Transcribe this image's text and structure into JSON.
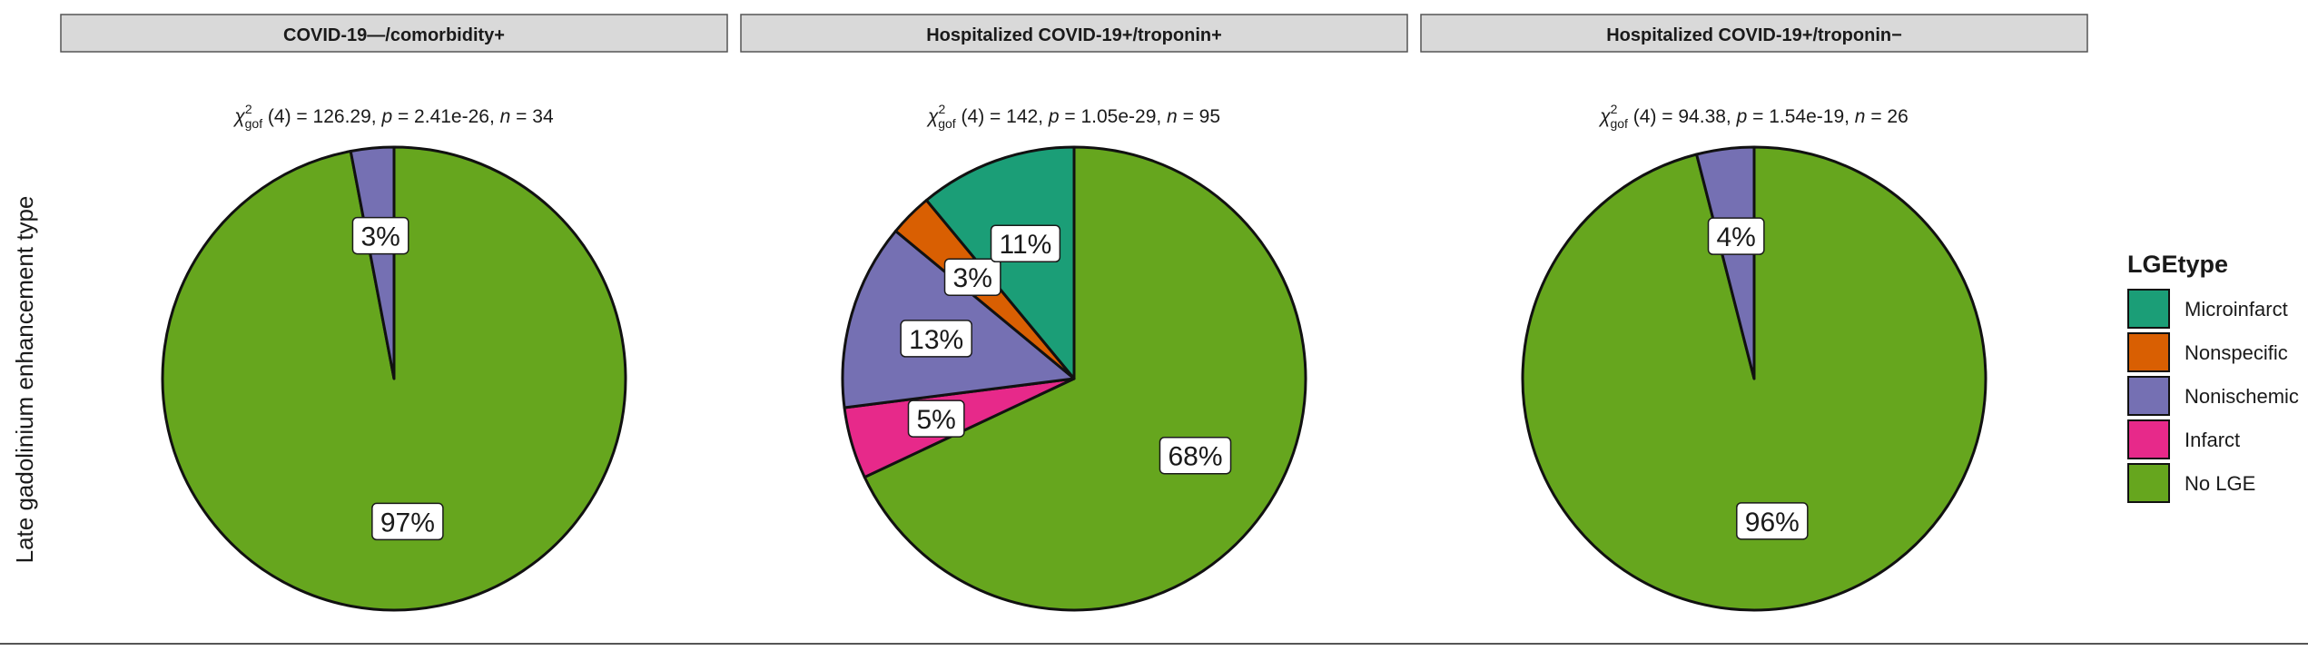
{
  "y_axis_label": "Late gadolinium enhancement type",
  "legend": {
    "title": "LGEtype",
    "items": [
      {
        "label": "Microinfarct",
        "color": "#1b9e77"
      },
      {
        "label": "Nonspecific",
        "color": "#d95f02"
      },
      {
        "label": "Nonischemic",
        "color": "#7570b3"
      },
      {
        "label": "Infarct",
        "color": "#e7298a"
      },
      {
        "label": "No LGE",
        "color": "#66a61e"
      }
    ]
  },
  "chart_data": [
    {
      "type": "pie",
      "title": "COVID-19—/comorbidity+",
      "stat": {
        "chi2": "126.29",
        "p": "2.41e-26",
        "n": "34"
      },
      "slices": [
        {
          "name": "No LGE",
          "value": 97,
          "label": "97%",
          "color": "#66a61e"
        },
        {
          "name": "Nonischemic",
          "value": 3,
          "label": "3%",
          "color": "#7570b3"
        }
      ]
    },
    {
      "type": "pie",
      "title": "Hospitalized COVID-19+/troponin+",
      "stat": {
        "chi2": "142",
        "p": "1.05e-29",
        "n": "95"
      },
      "slices": [
        {
          "name": "No LGE",
          "value": 68,
          "label": "68%",
          "color": "#66a61e"
        },
        {
          "name": "Infarct",
          "value": 5,
          "label": "5%",
          "color": "#e7298a"
        },
        {
          "name": "Nonischemic",
          "value": 13,
          "label": "13%",
          "color": "#7570b3"
        },
        {
          "name": "Nonspecific",
          "value": 3,
          "label": "3%",
          "color": "#d95f02"
        },
        {
          "name": "Microinfarct",
          "value": 11,
          "label": "11%",
          "color": "#1b9e77"
        }
      ]
    },
    {
      "type": "pie",
      "title": "Hospitalized COVID-19+/troponin−",
      "stat": {
        "chi2": "94.38",
        "p": "1.54e-19",
        "n": "26"
      },
      "slices": [
        {
          "name": "No LGE",
          "value": 96,
          "label": "96%",
          "color": "#66a61e"
        },
        {
          "name": "Nonischemic",
          "value": 4,
          "label": "4%",
          "color": "#7570b3"
        }
      ]
    }
  ]
}
